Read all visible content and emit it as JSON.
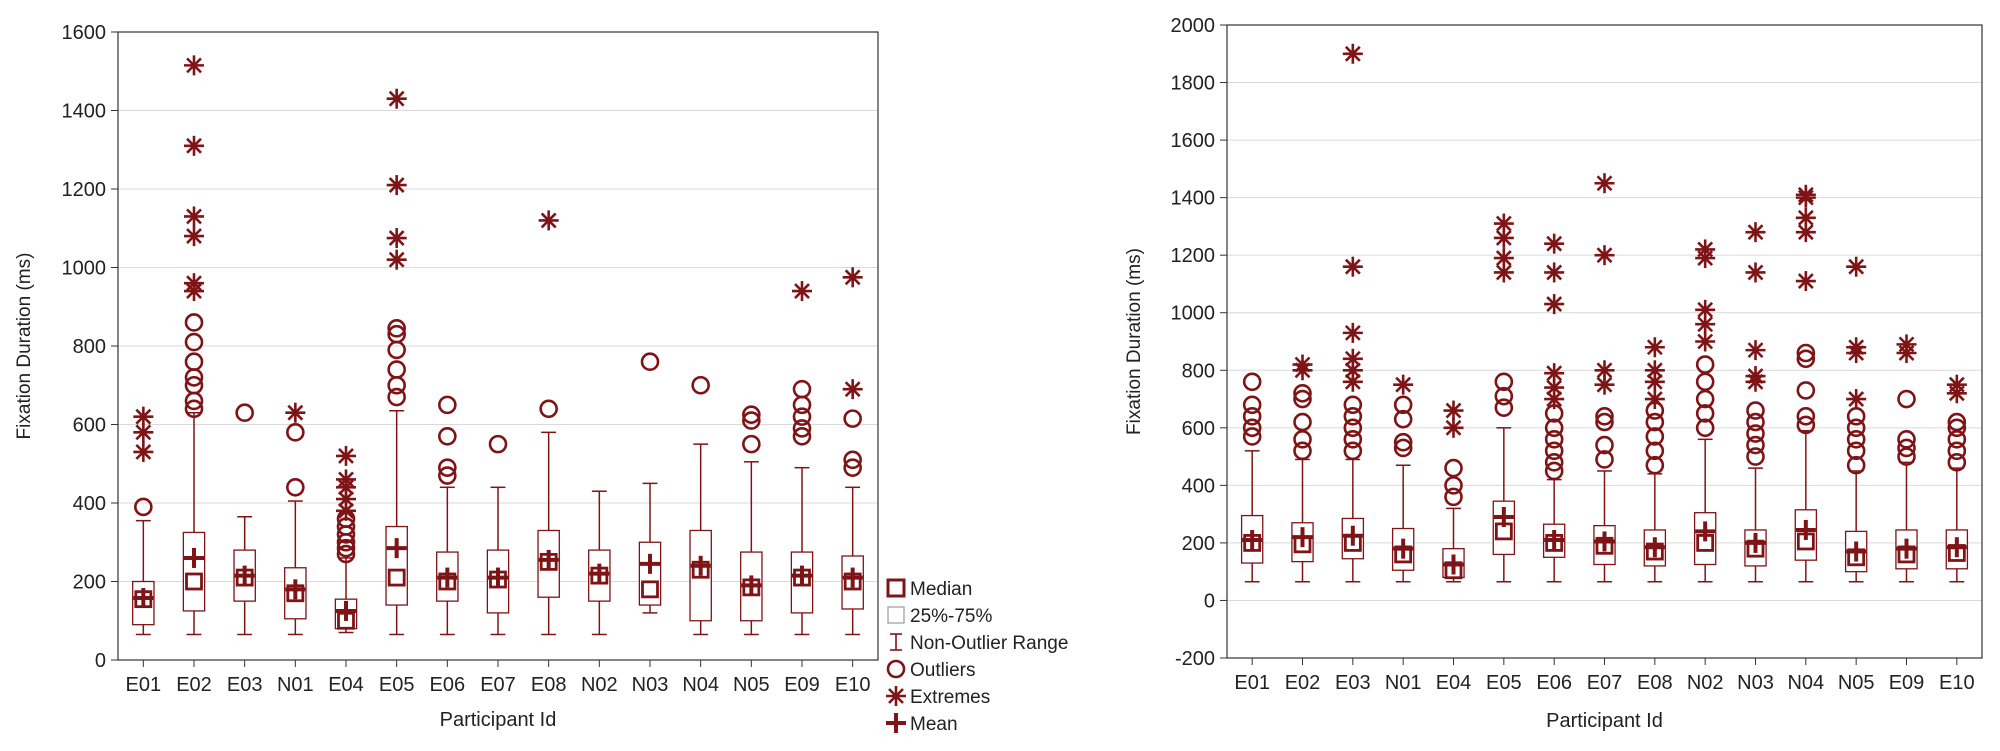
{
  "colors": {
    "accent": "#7f1416",
    "grid": "#d9d9d9",
    "axis": "#333333"
  },
  "legend": {
    "median": "Median",
    "box": "25%-75%",
    "whisker": "Non-Outlier Range",
    "outliers": "Outliers",
    "extremes": "Extremes",
    "mean": "Mean"
  },
  "chart_data": [
    {
      "type": "boxplot",
      "title": "",
      "xlabel": "Participant Id",
      "ylabel": "Fixation Duration (ms)",
      "ylim": [
        0,
        1600
      ],
      "ytick_step": 200,
      "yticks": [
        "0",
        "200",
        "400",
        "600",
        "800",
        "1000",
        "1200",
        "1400",
        "1600"
      ],
      "grid": true,
      "categories": [
        "E01",
        "E02",
        "E03",
        "N01",
        "E04",
        "E05",
        "E06",
        "E07",
        "E08",
        "N02",
        "N03",
        "N04",
        "N05",
        "E09",
        "E10"
      ],
      "boxes": [
        {
          "min": 65,
          "q1": 90,
          "median": 155,
          "q3": 200,
          "max": 355,
          "mean": 158,
          "outliers": [
            390
          ],
          "extremes": [
            530,
            580,
            620
          ]
        },
        {
          "min": 65,
          "q1": 125,
          "median": 200,
          "q3": 325,
          "max": 630,
          "mean": 260,
          "outliers": [
            640,
            660,
            700,
            720,
            760,
            810,
            860
          ],
          "extremes": [
            940,
            960,
            1080,
            1130,
            1310,
            1515
          ]
        },
        {
          "min": 65,
          "q1": 150,
          "median": 210,
          "q3": 280,
          "max": 365,
          "mean": 215,
          "outliers": [
            630
          ],
          "extremes": []
        },
        {
          "min": 65,
          "q1": 105,
          "median": 170,
          "q3": 235,
          "max": 405,
          "mean": 180,
          "outliers": [
            440,
            580
          ],
          "extremes": [
            630
          ]
        },
        {
          "min": 70,
          "q1": 80,
          "median": 100,
          "q3": 155,
          "max": 260,
          "mean": 125,
          "outliers": [
            270,
            285,
            300,
            320,
            340,
            360
          ],
          "extremes": [
            380,
            410,
            440,
            460,
            520
          ]
        },
        {
          "min": 65,
          "q1": 140,
          "median": 210,
          "q3": 340,
          "max": 635,
          "mean": 285,
          "outliers": [
            670,
            700,
            740,
            790,
            830,
            845
          ],
          "extremes": [
            1020,
            1075,
            1210,
            1430
          ]
        },
        {
          "min": 65,
          "q1": 150,
          "median": 200,
          "q3": 275,
          "max": 440,
          "mean": 210,
          "outliers": [
            470,
            490,
            570,
            650
          ],
          "extremes": []
        },
        {
          "min": 65,
          "q1": 120,
          "median": 205,
          "q3": 280,
          "max": 440,
          "mean": 210,
          "outliers": [
            550
          ],
          "extremes": []
        },
        {
          "min": 65,
          "q1": 160,
          "median": 250,
          "q3": 330,
          "max": 580,
          "mean": 255,
          "outliers": [
            640
          ],
          "extremes": [
            1120
          ]
        },
        {
          "min": 65,
          "q1": 150,
          "median": 215,
          "q3": 280,
          "max": 430,
          "mean": 220,
          "outliers": [],
          "extremes": []
        },
        {
          "min": 120,
          "q1": 140,
          "median": 180,
          "q3": 300,
          "max": 450,
          "mean": 245,
          "outliers": [
            760
          ],
          "extremes": []
        },
        {
          "min": 65,
          "q1": 100,
          "median": 230,
          "q3": 330,
          "max": 550,
          "mean": 240,
          "outliers": [
            700
          ],
          "extremes": []
        },
        {
          "min": 65,
          "q1": 100,
          "median": 185,
          "q3": 275,
          "max": 505,
          "mean": 190,
          "outliers": [
            550,
            610,
            625
          ],
          "extremes": []
        },
        {
          "min": 65,
          "q1": 120,
          "median": 210,
          "q3": 275,
          "max": 490,
          "mean": 215,
          "outliers": [
            570,
            590,
            620,
            650,
            690
          ],
          "extremes": [
            940
          ]
        },
        {
          "min": 65,
          "q1": 130,
          "median": 200,
          "q3": 265,
          "max": 440,
          "mean": 210,
          "outliers": [
            490,
            510,
            615
          ],
          "extremes": [
            690,
            975
          ]
        }
      ]
    },
    {
      "type": "boxplot",
      "title": "",
      "xlabel": "Participant Id",
      "ylabel": "Fixation Duration (ms)",
      "ylim": [
        -200,
        2000
      ],
      "ytick_step": 200,
      "yticks": [
        "-200",
        "0",
        "200",
        "400",
        "600",
        "800",
        "1000",
        "1200",
        "1400",
        "1600",
        "1800",
        "2000"
      ],
      "grid": true,
      "categories": [
        "E01",
        "E02",
        "E03",
        "N01",
        "E04",
        "E05",
        "E06",
        "E07",
        "E08",
        "N02",
        "N03",
        "N04",
        "N05",
        "E09",
        "E10"
      ],
      "boxes": [
        {
          "min": 65,
          "q1": 130,
          "median": 200,
          "q3": 295,
          "max": 520,
          "mean": 210,
          "outliers": [
            570,
            600,
            640,
            680,
            760
          ],
          "extremes": []
        },
        {
          "min": 65,
          "q1": 135,
          "median": 195,
          "q3": 270,
          "max": 490,
          "mean": 220,
          "outliers": [
            520,
            560,
            620,
            700,
            720
          ],
          "extremes": [
            800,
            820
          ]
        },
        {
          "min": 65,
          "q1": 145,
          "median": 200,
          "q3": 285,
          "max": 490,
          "mean": 225,
          "outliers": [
            520,
            560,
            600,
            640,
            680
          ],
          "extremes": [
            760,
            800,
            840,
            930,
            1160,
            1900
          ]
        },
        {
          "min": 65,
          "q1": 105,
          "median": 160,
          "q3": 250,
          "max": 470,
          "mean": 180,
          "outliers": [
            530,
            550,
            630,
            680
          ],
          "extremes": [
            750
          ]
        },
        {
          "min": 65,
          "q1": 80,
          "median": 105,
          "q3": 180,
          "max": 320,
          "mean": 125,
          "outliers": [
            360,
            400,
            460
          ],
          "extremes": [
            600,
            660
          ]
        },
        {
          "min": 65,
          "q1": 160,
          "median": 240,
          "q3": 345,
          "max": 600,
          "mean": 290,
          "outliers": [
            670,
            710,
            760
          ],
          "extremes": [
            1140,
            1190,
            1260,
            1310
          ]
        },
        {
          "min": 65,
          "q1": 150,
          "median": 200,
          "q3": 265,
          "max": 420,
          "mean": 210,
          "outliers": [
            450,
            480,
            520,
            560,
            600,
            650
          ],
          "extremes": [
            700,
            740,
            790,
            1030,
            1140,
            1240
          ]
        },
        {
          "min": 65,
          "q1": 125,
          "median": 190,
          "q3": 260,
          "max": 450,
          "mean": 205,
          "outliers": [
            490,
            540,
            620,
            640
          ],
          "extremes": [
            750,
            800,
            1200,
            1450
          ]
        },
        {
          "min": 65,
          "q1": 120,
          "median": 170,
          "q3": 245,
          "max": 440,
          "mean": 185,
          "outliers": [
            470,
            520,
            570,
            620,
            660
          ],
          "extremes": [
            700,
            760,
            800,
            880
          ]
        },
        {
          "min": 65,
          "q1": 125,
          "median": 200,
          "q3": 305,
          "max": 560,
          "mean": 240,
          "outliers": [
            600,
            650,
            700,
            760,
            820
          ],
          "extremes": [
            900,
            960,
            1010,
            1190,
            1220
          ]
        },
        {
          "min": 65,
          "q1": 120,
          "median": 180,
          "q3": 245,
          "max": 460,
          "mean": 200,
          "outliers": [
            500,
            540,
            580,
            620,
            660
          ],
          "extremes": [
            760,
            780,
            870,
            1140,
            1280
          ]
        },
        {
          "min": 65,
          "q1": 140,
          "median": 205,
          "q3": 315,
          "max": 590,
          "mean": 245,
          "outliers": [
            610,
            640,
            730,
            840,
            860
          ],
          "extremes": [
            1110,
            1280,
            1330,
            1400,
            1410
          ]
        },
        {
          "min": 65,
          "q1": 100,
          "median": 150,
          "q3": 240,
          "max": 450,
          "mean": 170,
          "outliers": [
            470,
            520,
            560,
            600,
            640
          ],
          "extremes": [
            700,
            860,
            880,
            1160
          ]
        },
        {
          "min": 65,
          "q1": 110,
          "median": 160,
          "q3": 245,
          "max": 480,
          "mean": 180,
          "outliers": [
            500,
            530,
            560,
            700
          ],
          "extremes": [
            860,
            890
          ]
        },
        {
          "min": 65,
          "q1": 110,
          "median": 165,
          "q3": 245,
          "max": 460,
          "mean": 185,
          "outliers": [
            480,
            520,
            560,
            600,
            620
          ],
          "extremes": [
            720,
            750
          ]
        }
      ]
    }
  ]
}
